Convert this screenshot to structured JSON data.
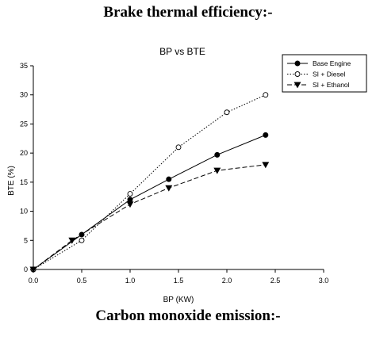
{
  "headings": {
    "top": "Brake thermal efficiency:-",
    "bottom": "Carbon monoxide emission:-"
  },
  "chart_data": {
    "type": "line",
    "title": "BP vs BTE",
    "xlabel": "BP (KW)",
    "ylabel": "BTE (%)",
    "xlim": [
      0.0,
      3.0
    ],
    "ylim": [
      0,
      35
    ],
    "xticks": [
      "0.0",
      "0.5",
      "1.0",
      "1.5",
      "2.0",
      "2.5",
      "3.0"
    ],
    "yticks": [
      "0",
      "5",
      "10",
      "15",
      "20",
      "25",
      "30",
      "35"
    ],
    "grid": false,
    "legend_position": "top-right",
    "series": [
      {
        "name": "Base Engine",
        "x": [
          0.0,
          0.5,
          1.0,
          1.4,
          1.9,
          2.4
        ],
        "y": [
          0,
          6,
          12,
          15.5,
          19.7,
          23.1
        ],
        "marker": "filled-circle",
        "line": "solid",
        "color": "#000000"
      },
      {
        "name": "SI + Diesel",
        "x": [
          0.0,
          0.5,
          1.0,
          1.5,
          2.0,
          2.4
        ],
        "y": [
          0,
          5,
          13,
          21,
          27,
          30
        ],
        "marker": "open-circle",
        "line": "dotted",
        "color": "#000000"
      },
      {
        "name": "SI + Ethanol",
        "x": [
          0.0,
          0.4,
          1.0,
          1.4,
          1.9,
          2.4
        ],
        "y": [
          0,
          5,
          11.2,
          14,
          17,
          18
        ],
        "marker": "filled-triangle-down",
        "line": "dashed",
        "color": "#000000"
      }
    ]
  }
}
